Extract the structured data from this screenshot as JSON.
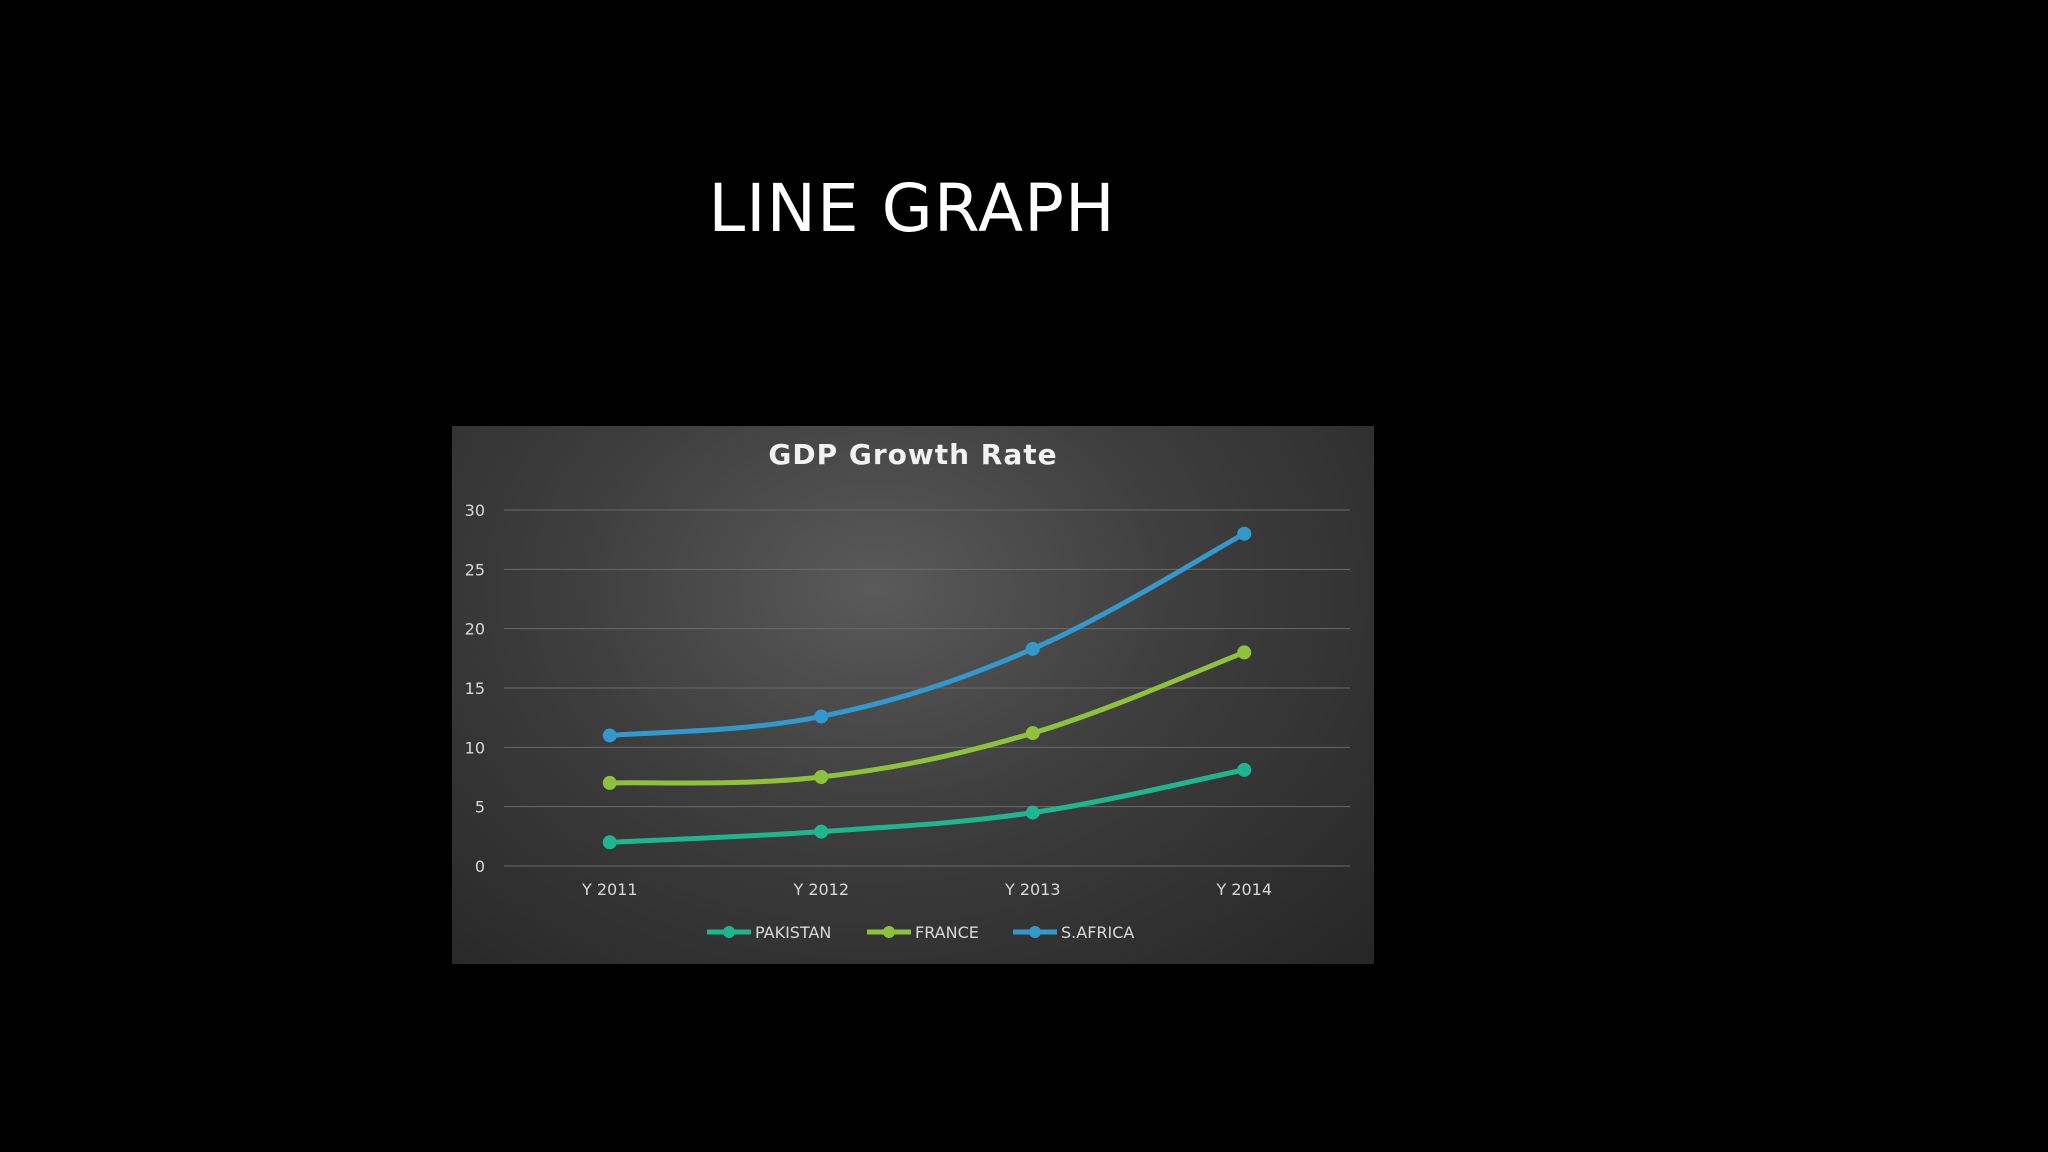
{
  "slide": {
    "title": "LINE GRAPH"
  },
  "chart_data": {
    "type": "line",
    "title": "GDP Growth Rate",
    "categories": [
      "Y 2011",
      "Y 2012",
      "Y 2013",
      "Y 2014"
    ],
    "ylim": [
      0,
      30
    ],
    "yticks": [
      0,
      5,
      10,
      15,
      20,
      25,
      30
    ],
    "grid": true,
    "legend": "bottom",
    "series": [
      {
        "name": "PAKISTAN",
        "color": "#1fb58f",
        "values": [
          2,
          2.9,
          4.5,
          8.1
        ]
      },
      {
        "name": "FRANCE",
        "color": "#8fc23c",
        "values": [
          7,
          7.5,
          11.2,
          18
        ]
      },
      {
        "name": "S.AFRICA",
        "color": "#3399cc",
        "values": [
          11,
          12.6,
          18.3,
          28
        ]
      }
    ]
  }
}
